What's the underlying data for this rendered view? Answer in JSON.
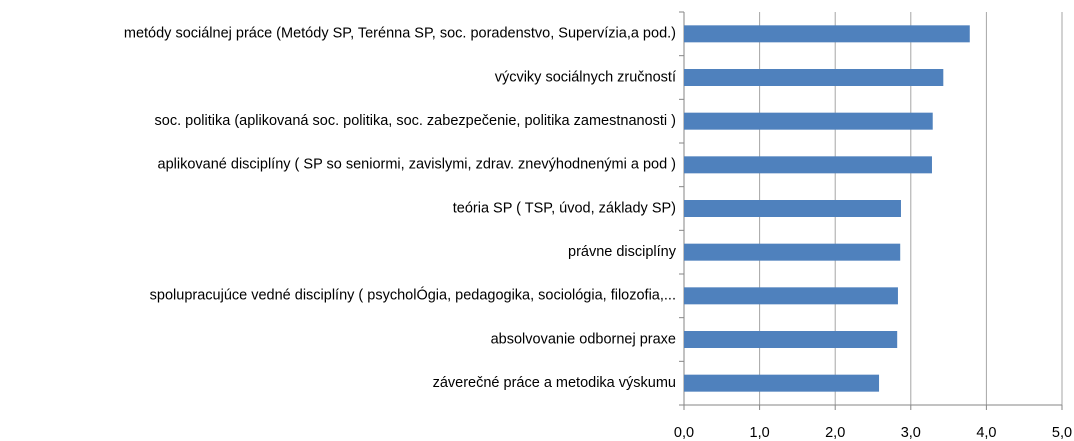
{
  "chart_data": {
    "type": "bar",
    "orientation": "horizontal",
    "categories": [
      "metódy sociálnej práce (Metódy SP, Terénna SP, soc. poradenstvo, Supervízia,a pod.)",
      "výcviky sociálnych zručností",
      "soc. politika (aplikovaná soc. politika, soc. zabezpečenie, politika zamestnanosti )",
      "aplikované disciplíny ( SP so seniormi, zavislymi, zdrav. znevýhodnenými a pod )",
      "teória SP ( TSP, úvod, základy SP)",
      "právne disciplíny",
      "spolupracujúce vedné disciplíny ( psycholÓgia, pedagogika, sociológia, filozofia,...",
      "absolvovanie odbornej praxe",
      "záverečné práce a metodika výskumu"
    ],
    "values": [
      3.78,
      3.43,
      3.29,
      3.28,
      2.87,
      2.86,
      2.83,
      2.82,
      2.58
    ],
    "color": "#4f81bd",
    "xlim": [
      0,
      5
    ],
    "xticks": [
      {
        "value": 0,
        "label": "0,0"
      },
      {
        "value": 1,
        "label": "1,0"
      },
      {
        "value": 2,
        "label": "2,0"
      },
      {
        "value": 3,
        "label": "3,0"
      },
      {
        "value": 4,
        "label": "4,0"
      },
      {
        "value": 5,
        "label": "5,0"
      }
    ],
    "grid": true
  }
}
